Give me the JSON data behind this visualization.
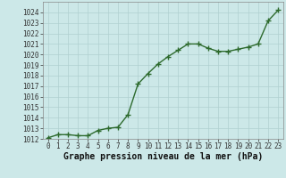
{
  "x": [
    0,
    1,
    2,
    3,
    4,
    5,
    6,
    7,
    8,
    9,
    10,
    11,
    12,
    13,
    14,
    15,
    16,
    17,
    18,
    19,
    20,
    21,
    22,
    23
  ],
  "y": [
    1012.1,
    1012.4,
    1012.4,
    1012.3,
    1012.3,
    1012.8,
    1013.0,
    1013.1,
    1014.3,
    1017.2,
    1018.2,
    1019.1,
    1019.8,
    1020.4,
    1021.0,
    1021.0,
    1020.6,
    1020.3,
    1020.3,
    1020.5,
    1020.7,
    1021.0,
    1023.2,
    1024.2
  ],
  "line_color": "#2d6a2d",
  "marker": "+",
  "marker_size": 4,
  "marker_color": "#2d6a2d",
  "bg_color": "#cce8e8",
  "grid_color": "#b0d0d0",
  "xlabel": "Graphe pression niveau de la mer (hPa)",
  "ylim": [
    1012,
    1025
  ],
  "xlim_min": -0.5,
  "xlim_max": 23.5,
  "yticks": [
    1012,
    1013,
    1014,
    1015,
    1016,
    1017,
    1018,
    1019,
    1020,
    1021,
    1022,
    1023,
    1024
  ],
  "xticks": [
    0,
    1,
    2,
    3,
    4,
    5,
    6,
    7,
    8,
    9,
    10,
    11,
    12,
    13,
    14,
    15,
    16,
    17,
    18,
    19,
    20,
    21,
    22,
    23
  ],
  "tick_fontsize": 5.5,
  "label_fontsize": 7,
  "line_width": 1.0
}
